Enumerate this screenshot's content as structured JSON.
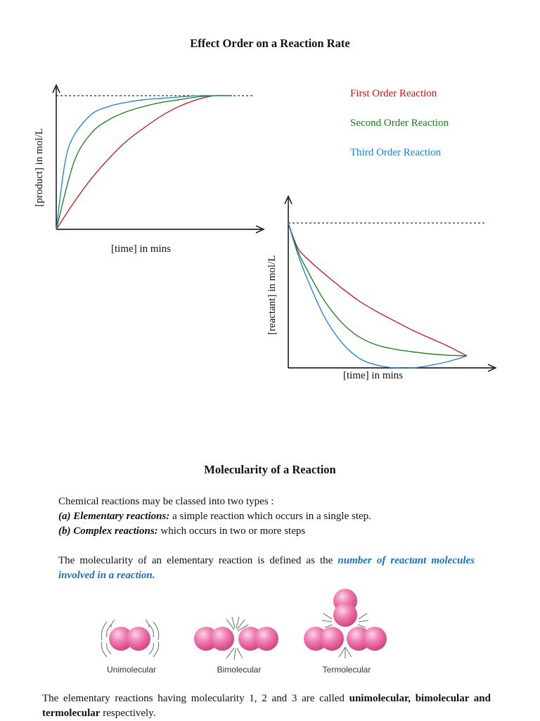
{
  "section1": {
    "title": "Effect Order on a Reaction Rate"
  },
  "legend": [
    {
      "label": "First Order Reaction",
      "color": "#c0141c"
    },
    {
      "label": "Second Order Reaction",
      "color": "#1a7a1a"
    },
    {
      "label": "Third Order Reaction",
      "color": "#1a7fd0"
    }
  ],
  "chart_data": [
    {
      "type": "line",
      "title": "",
      "xlabel": "[time] in mins",
      "ylabel": "[product] in mol/L",
      "grid": false,
      "legend_position": "right",
      "series": [
        {
          "name": "First Order Reaction",
          "color": "#c0141c",
          "x": [
            0,
            0.1,
            0.2,
            0.3,
            0.4,
            0.5,
            0.6,
            0.7,
            0.8,
            0.9,
            1.0
          ],
          "y": [
            0,
            0.2,
            0.38,
            0.53,
            0.66,
            0.76,
            0.85,
            0.92,
            0.97,
            1.0,
            1.0
          ]
        },
        {
          "name": "Second Order Reaction",
          "color": "#1a7a1a",
          "x": [
            0,
            0.1,
            0.2,
            0.3,
            0.4,
            0.5,
            0.6,
            0.7,
            0.8,
            0.9,
            1.0
          ],
          "y": [
            0,
            0.5,
            0.72,
            0.82,
            0.88,
            0.92,
            0.95,
            0.97,
            0.99,
            1.0,
            1.0
          ]
        },
        {
          "name": "Third Order Reaction",
          "color": "#1a7fd0",
          "x": [
            0,
            0.05,
            0.1,
            0.2,
            0.3,
            0.4,
            0.5,
            0.6,
            0.7,
            0.8,
            0.9,
            1.0
          ],
          "y": [
            0,
            0.5,
            0.7,
            0.86,
            0.92,
            0.95,
            0.97,
            0.98,
            0.99,
            1.0,
            1.0,
            1.0
          ]
        }
      ],
      "reference_line": {
        "y": 1.0,
        "style": "dashed"
      }
    },
    {
      "type": "line",
      "title": "",
      "xlabel": "[time] in mins",
      "ylabel": "[reactant] in mol/L",
      "grid": false,
      "series": [
        {
          "name": "First Order Reaction",
          "color": "#c0141c",
          "x": [
            0,
            0.05,
            0.1,
            0.2,
            0.3,
            0.4,
            0.5,
            0.6,
            0.7,
            0.8,
            0.9,
            1.0
          ],
          "y": [
            1.0,
            0.82,
            0.74,
            0.62,
            0.51,
            0.41,
            0.33,
            0.26,
            0.19,
            0.13,
            0.07,
            0.0
          ]
        },
        {
          "name": "Second Order Reaction",
          "color": "#1a7a1a",
          "x": [
            0,
            0.05,
            0.1,
            0.2,
            0.3,
            0.4,
            0.5,
            0.6,
            0.7,
            0.8,
            0.9,
            1.0
          ],
          "y": [
            1.0,
            0.8,
            0.66,
            0.42,
            0.25,
            0.14,
            0.08,
            0.05,
            0.03,
            0.015,
            0.005,
            0.0
          ]
        },
        {
          "name": "Third Order Reaction",
          "color": "#1a7fd0",
          "x": [
            0,
            0.05,
            0.1,
            0.2,
            0.3,
            0.4,
            0.5,
            0.6,
            0.7,
            0.8,
            0.9,
            1.0
          ],
          "y": [
            1.0,
            0.78,
            0.6,
            0.3,
            0.1,
            -0.02,
            -0.07,
            -0.09,
            -0.09,
            -0.07,
            -0.04,
            0.0
          ]
        }
      ],
      "reference_line": {
        "y": 1.0,
        "style": "dashed"
      }
    }
  ],
  "section2": {
    "title": "Molecularity of a Reaction",
    "intro": "Chemical reactions may be classed into two types :",
    "type_a_label": "(a) Elementary reactions:",
    "type_a_text": " a simple reaction which occurs in a single step.",
    "type_b_label": "(b) Complex reactions:",
    "type_b_text": " which occurs in two or more steps",
    "def_prefix": "The molecularity of an elementary reaction is defined as the ",
    "def_highlight": "number of reactant molecules involved in a reaction.",
    "final_prefix": "The elementary reactions having molecularity 1, 2 and 3 are called ",
    "final_bold": "unimolecular, bimolecular and termolecular",
    "final_suffix": " respectively."
  },
  "molecules": {
    "labels": [
      "Unimolecular",
      "Bimolecular",
      "Termolecular"
    ],
    "color": "#e8609a"
  }
}
